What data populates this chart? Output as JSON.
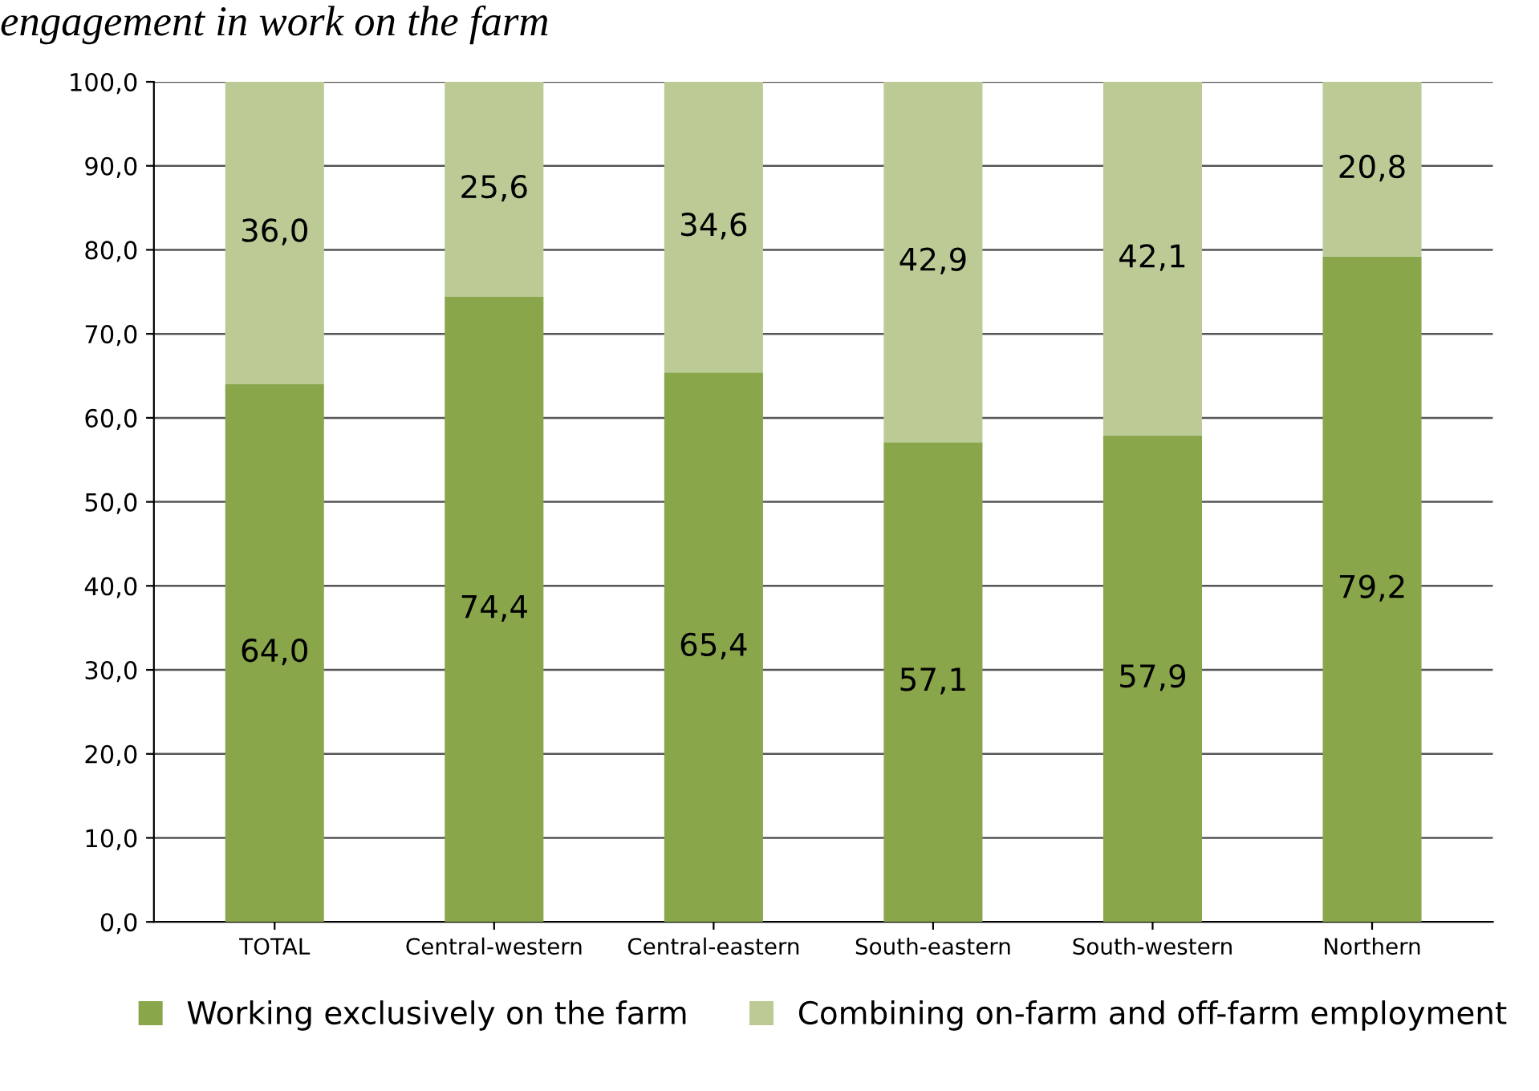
{
  "chart_data": {
    "type": "bar",
    "title": "engagement in work on the farm",
    "stacked": true,
    "data_labels": true,
    "grid": "y",
    "legend": "bottom",
    "categories": [
      "TOTAL",
      "Central-western",
      "Central-eastern",
      "South-eastern",
      "South-western",
      "Northern"
    ],
    "series": [
      {
        "name": "Working exclusively on the farm",
        "color": "#8aa64b",
        "values": [
          64.0,
          74.4,
          65.4,
          57.1,
          57.9,
          79.2
        ],
        "value_labels": [
          "64,0",
          "74,4",
          "65,4",
          "57,1",
          "57,9",
          "79,2"
        ]
      },
      {
        "name": "Combining on-farm and off-farm employment",
        "color": "#bccb96",
        "values": [
          36.0,
          25.6,
          34.6,
          42.9,
          42.1,
          20.8
        ],
        "value_labels": [
          "36,0",
          "25,6",
          "34,6",
          "42,9",
          "42,1",
          "20,8"
        ]
      }
    ],
    "ylim": [
      0,
      100
    ],
    "yticks": [
      {
        "value": 0,
        "label": "0,0"
      },
      {
        "value": 10,
        "label": "10,0"
      },
      {
        "value": 20,
        "label": "20,0"
      },
      {
        "value": 30,
        "label": "30,0"
      },
      {
        "value": 40,
        "label": "40,0"
      },
      {
        "value": 50,
        "label": "50,0"
      },
      {
        "value": 60,
        "label": "60,0"
      },
      {
        "value": 70,
        "label": "70,0"
      },
      {
        "value": 80,
        "label": "80,0"
      },
      {
        "value": 90,
        "label": "90,0"
      },
      {
        "value": 100,
        "label": "100,0"
      }
    ]
  }
}
